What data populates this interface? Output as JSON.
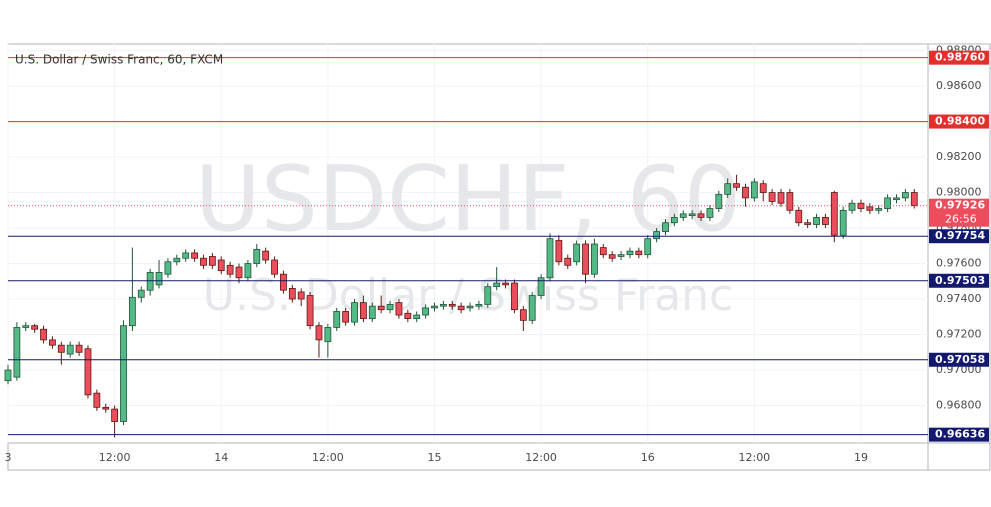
{
  "chart_data": {
    "type": "candlestick",
    "title": "U.S. Dollar / Swiss Franc, 60, FXCM",
    "watermark": "USDCHF, 60",
    "watermark_subtitle": "U.S. Dollar / Swiss Franc",
    "categories": [
      "3",
      null,
      null,
      null,
      null,
      null,
      null,
      null,
      null,
      null,
      null,
      null,
      "12:00",
      null,
      null,
      null,
      null,
      null,
      null,
      null,
      null,
      null,
      null,
      null,
      "14",
      null,
      null,
      null,
      null,
      null,
      null,
      null,
      null,
      null,
      null,
      null,
      "12:00",
      null,
      null,
      null,
      null,
      null,
      null,
      null,
      null,
      null,
      null,
      null,
      "15",
      null,
      null,
      null,
      null,
      null,
      null,
      null,
      null,
      null,
      null,
      null,
      "12:00",
      null,
      null,
      null,
      null,
      null,
      null,
      null,
      null,
      null,
      null,
      null,
      "16",
      null,
      null,
      null,
      null,
      null,
      null,
      null,
      null,
      null,
      null,
      null,
      "12:00",
      null,
      null,
      null,
      null,
      null,
      null,
      null,
      null,
      null,
      null,
      null,
      "19",
      null,
      null,
      null,
      null,
      null,
      null
    ],
    "open": [
      0.9694,
      0.9696,
      0.9724,
      0.9725,
      0.9723,
      0.9717,
      0.9714,
      0.9709,
      0.9714,
      0.9712,
      0.9687,
      0.9679,
      0.9678,
      0.9671,
      0.9725,
      0.9741,
      0.9745,
      0.9748,
      0.9754,
      0.9761,
      0.9763,
      0.9766,
      0.9763,
      0.9764,
      0.9762,
      0.9759,
      0.9758,
      0.9752,
      0.976,
      0.9767,
      0.9762,
      0.9754,
      0.9746,
      0.9744,
      0.9742,
      0.9725,
      0.9716,
      0.9724,
      0.9733,
      0.9727,
      0.9738,
      0.9729,
      0.9736,
      0.9734,
      0.9738,
      0.9732,
      0.9729,
      0.9731,
      0.9735,
      0.9736,
      0.9737,
      0.9736,
      0.9735,
      0.9736,
      0.9737,
      0.9747,
      0.9749,
      0.9749,
      0.9734,
      0.9728,
      0.9742,
      0.9752,
      0.9773,
      0.9763,
      0.9761,
      0.9771,
      0.9754,
      0.9769,
      0.9765,
      0.9764,
      0.9765,
      0.9767,
      0.9765,
      0.9774,
      0.9778,
      0.9783,
      0.9786,
      0.9787,
      0.9788,
      0.9786,
      0.9791,
      0.9799,
      0.9805,
      0.9803,
      0.9797,
      0.9805,
      0.98,
      0.98,
      0.98,
      0.979,
      0.9783,
      0.9782,
      0.9786,
      0.98,
      0.9776,
      0.979,
      0.9794,
      0.9792,
      0.979,
      0.9791,
      0.9796,
      0.9797,
      0.98
    ],
    "high": [
      0.9703,
      0.9727,
      0.9727,
      0.9726,
      0.9725,
      0.9719,
      0.9716,
      0.9716,
      0.9716,
      0.9714,
      0.9689,
      0.9681,
      0.968,
      0.9728,
      0.9769,
      0.9747,
      0.9757,
      0.9762,
      0.9763,
      0.9765,
      0.9768,
      0.9768,
      0.9765,
      0.9766,
      0.9764,
      0.9761,
      0.976,
      0.9762,
      0.9771,
      0.9769,
      0.9764,
      0.9756,
      0.9748,
      0.9746,
      0.9744,
      0.9727,
      0.9726,
      0.9735,
      0.9735,
      0.974,
      0.9742,
      0.9738,
      0.9742,
      0.9739,
      0.974,
      0.9734,
      0.9733,
      0.9737,
      0.9738,
      0.9739,
      0.9739,
      0.9738,
      0.9738,
      0.9739,
      0.9749,
      0.9758,
      0.9751,
      0.9751,
      0.9736,
      0.9744,
      0.9754,
      0.9777,
      0.9776,
      0.9765,
      0.9773,
      0.9773,
      0.9774,
      0.9771,
      0.9767,
      0.9767,
      0.9769,
      0.9769,
      0.9776,
      0.978,
      0.9785,
      0.9788,
      0.979,
      0.979,
      0.979,
      0.9793,
      0.9801,
      0.9808,
      0.981,
      0.9805,
      0.9808,
      0.9807,
      0.9802,
      0.9802,
      0.9802,
      0.9792,
      0.9785,
      0.9788,
      0.9788,
      0.9801,
      0.9792,
      0.9796,
      0.9796,
      0.9794,
      0.9793,
      0.9799,
      0.9799,
      0.9802,
      0.9802
    ],
    "low": [
      0.9692,
      0.9694,
      0.9722,
      0.9721,
      0.9715,
      0.9712,
      0.9703,
      0.9707,
      0.9708,
      0.9684,
      0.9677,
      0.9676,
      0.9662,
      0.9669,
      0.9722,
      0.9738,
      0.9742,
      0.9746,
      0.9752,
      0.9759,
      0.9761,
      0.9761,
      0.9757,
      0.9757,
      0.9754,
      0.9752,
      0.9749,
      0.975,
      0.9758,
      0.976,
      0.9752,
      0.9743,
      0.9738,
      0.9736,
      0.9723,
      0.9707,
      0.9707,
      0.9722,
      0.9725,
      0.9725,
      0.9727,
      0.9727,
      0.9732,
      0.9732,
      0.9729,
      0.9727,
      0.9727,
      0.9729,
      0.9733,
      0.9734,
      0.9734,
      0.9732,
      0.9733,
      0.9734,
      0.9735,
      0.9745,
      0.9746,
      0.9732,
      0.9722,
      0.9726,
      0.974,
      0.975,
      0.9759,
      0.9757,
      0.9759,
      0.9749,
      0.9752,
      0.9763,
      0.9761,
      0.9762,
      0.9763,
      0.9763,
      0.9763,
      0.9772,
      0.9776,
      0.9781,
      0.9784,
      0.9785,
      0.9784,
      0.9784,
      0.9789,
      0.9797,
      0.9801,
      0.9792,
      0.9795,
      0.9795,
      0.9793,
      0.9792,
      0.9788,
      0.9781,
      0.978,
      0.978,
      0.978,
      0.9772,
      0.9774,
      0.9788,
      0.9789,
      0.9788,
      0.9788,
      0.9789,
      0.9794,
      0.9795,
      0.9791
    ],
    "close": [
      0.97,
      0.9724,
      0.9725,
      0.9723,
      0.9717,
      0.9714,
      0.971,
      0.9714,
      0.971,
      0.9686,
      0.9679,
      0.9678,
      0.9671,
      0.9725,
      0.9741,
      0.9745,
      0.9755,
      0.9755,
      0.9761,
      0.9763,
      0.9766,
      0.9763,
      0.9759,
      0.9759,
      0.9756,
      0.9754,
      0.9752,
      0.976,
      0.9768,
      0.9762,
      0.9754,
      0.9745,
      0.974,
      0.974,
      0.9725,
      0.9717,
      0.9724,
      0.9733,
      0.9727,
      0.9738,
      0.9729,
      0.9736,
      0.9734,
      0.9737,
      0.9731,
      0.9729,
      0.9731,
      0.9735,
      0.9736,
      0.9737,
      0.9736,
      0.9734,
      0.9736,
      0.9737,
      0.9747,
      0.9749,
      0.9748,
      0.9734,
      0.9728,
      0.9742,
      0.9752,
      0.9774,
      0.9761,
      0.9759,
      0.9771,
      0.9754,
      0.9771,
      0.9765,
      0.9763,
      0.9765,
      0.9767,
      0.9765,
      0.9774,
      0.9778,
      0.9783,
      0.9786,
      0.9788,
      0.9788,
      0.9786,
      0.9791,
      0.9799,
      0.9805,
      0.9803,
      0.9797,
      0.9806,
      0.98,
      0.9795,
      0.9794,
      0.979,
      0.9783,
      0.9782,
      0.9786,
      0.9782,
      0.9776,
      0.979,
      0.9794,
      0.9791,
      0.979,
      0.9791,
      0.9797,
      0.9797,
      0.98,
      0.97926
    ],
    "up_color": "#53b987",
    "down_color": "#eb4d5c",
    "ylim": [
      0.96589,
      0.98837
    ],
    "yticks": [
      {
        "value": 0.968,
        "label": "0.96800"
      },
      {
        "value": 0.97,
        "label": "0.97000"
      },
      {
        "value": 0.972,
        "label": "0.97200"
      },
      {
        "value": 0.974,
        "label": "0.97400"
      },
      {
        "value": 0.976,
        "label": "0.97600"
      },
      {
        "value": 0.978,
        "label": "0.97800"
      },
      {
        "value": 0.98,
        "label": "0.98000"
      },
      {
        "value": 0.982,
        "label": "0.98200"
      },
      {
        "value": 0.984,
        "label": "0.98400"
      },
      {
        "value": 0.986,
        "label": "0.98600"
      },
      {
        "value": 0.988,
        "label": "0.98800"
      }
    ],
    "grid": true,
    "levels": [
      {
        "value": 0.9876,
        "label": "0.98760",
        "color": "#e0302c"
      },
      {
        "value": 0.984,
        "label": "0.98400",
        "color": "#e0302c"
      },
      {
        "value": 0.97754,
        "label": "0.97754",
        "color": "#131a6e"
      },
      {
        "value": 0.97503,
        "label": "0.97503",
        "color": "#131a6e"
      },
      {
        "value": 0.97058,
        "label": "0.97058",
        "color": "#131a6e"
      },
      {
        "value": 0.96636,
        "label": "0.96636",
        "color": "#131a6e"
      }
    ],
    "last_price_label": "0.97926",
    "countdown": "26:56"
  }
}
